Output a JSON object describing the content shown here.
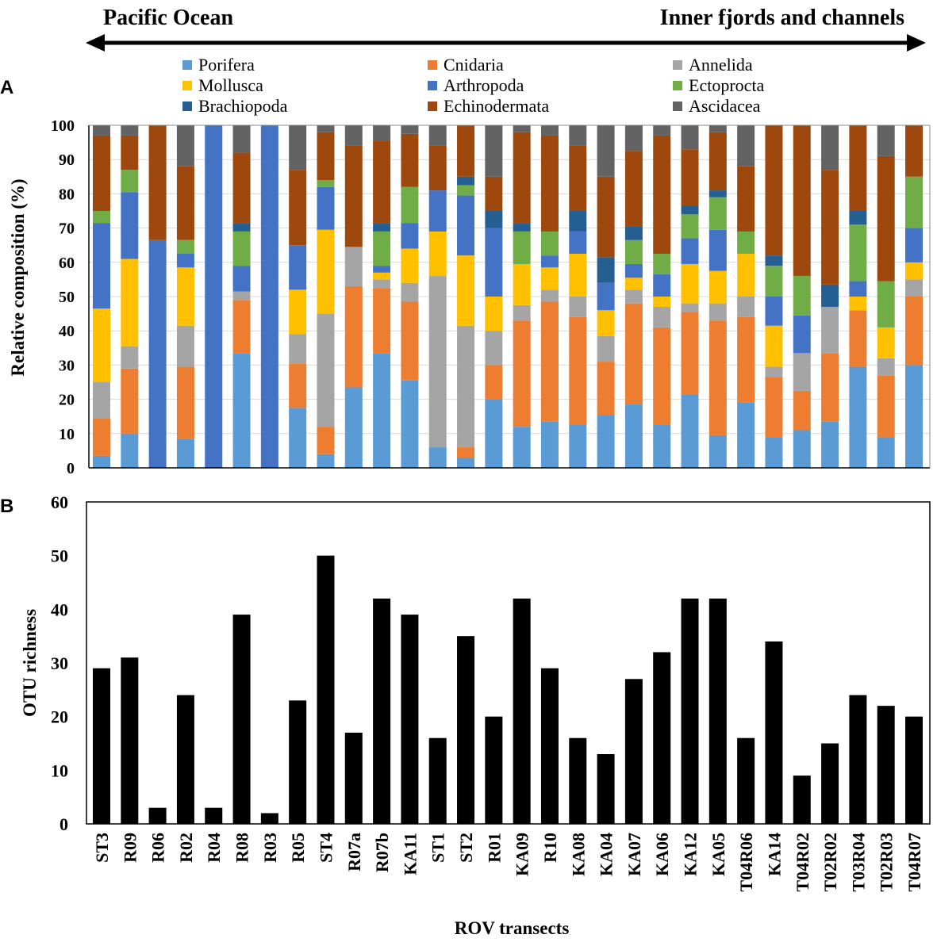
{
  "header": {
    "left_label": "Pacific Ocean",
    "right_label": "Inner fjords and channels"
  },
  "chart_data": [
    {
      "panel": "A",
      "type": "bar",
      "stacked": true,
      "ylabel": "Relative composition (%)",
      "ylim": [
        0,
        100
      ],
      "yticks": [
        "0",
        "10",
        "20",
        "30",
        "40",
        "50",
        "60",
        "70",
        "80",
        "90",
        "100"
      ],
      "grid": true,
      "legend_position": "top",
      "categories": [
        "ST3",
        "R09",
        "R06",
        "R02",
        "R04",
        "R08",
        "R03",
        "R05",
        "ST4",
        "R07a",
        "R07b",
        "KA11",
        "ST1",
        "ST2",
        "R01",
        "KA09",
        "R10",
        "KA08",
        "KA04",
        "KA07",
        "KA06",
        "KA12",
        "KA05",
        "T04R06",
        "KA14",
        "T04R02",
        "T02R02",
        "T03R04",
        "T02R03",
        "T04R07"
      ],
      "series": [
        {
          "name": "Porifera",
          "color": "#5B9BD5",
          "values": [
            3.5,
            10,
            0,
            8.5,
            0,
            33.5,
            0,
            17.5,
            4,
            23.5,
            33.5,
            25.5,
            6,
            3,
            20,
            12,
            13.5,
            12.5,
            15.5,
            18.5,
            12.5,
            21.5,
            9.5,
            19,
            9,
            11,
            13.5,
            29.5,
            9,
            30
          ]
        },
        {
          "name": "Cnidaria",
          "color": "#ED7D31",
          "values": [
            11,
            19,
            0,
            21,
            0,
            15.5,
            0,
            13,
            8,
            29.5,
            19,
            23,
            0,
            3,
            10,
            31,
            35,
            31.5,
            15.5,
            29.5,
            28.5,
            24,
            33.5,
            25,
            17.5,
            11.5,
            20,
            16.5,
            18,
            20
          ]
        },
        {
          "name": "Annelida",
          "color": "#A5A5A5",
          "values": [
            10.5,
            6.5,
            0,
            12,
            0,
            2.5,
            0,
            8.5,
            33,
            11.5,
            2.5,
            5.5,
            50,
            35.5,
            10,
            4.5,
            3.5,
            6,
            7.5,
            4,
            6,
            2.5,
            5,
            6,
            3,
            11,
            13.5,
            0,
            5,
            5
          ]
        },
        {
          "name": "Mollusca",
          "color": "#FFC000",
          "values": [
            21.5,
            25.5,
            0,
            17,
            0,
            0,
            0,
            13,
            24.5,
            0,
            2,
            10,
            13,
            20.5,
            10,
            12,
            6.5,
            12.5,
            7.5,
            3.5,
            3,
            11.5,
            9.5,
            12.5,
            12,
            0,
            0,
            4,
            9,
            5
          ]
        },
        {
          "name": "Arthropoda",
          "color": "#4472C4",
          "values": [
            25,
            19.5,
            66.5,
            4,
            100,
            7.5,
            100,
            13,
            12.5,
            0,
            2,
            7.5,
            12,
            17.5,
            20,
            0,
            3.5,
            6.5,
            8,
            4,
            6.5,
            7.5,
            12,
            0,
            8.5,
            11,
            0,
            4.5,
            0,
            10
          ]
        },
        {
          "name": "Ectoprocta",
          "color": "#70AD47",
          "values": [
            3.5,
            6.5,
            0,
            4,
            0,
            10,
            0,
            0,
            2,
            0,
            10,
            10.5,
            0,
            3,
            0,
            9.5,
            7,
            0,
            0,
            7,
            6,
            7,
            9.5,
            6.5,
            9,
            11.5,
            0,
            16.5,
            13.5,
            15
          ]
        },
        {
          "name": "Brachiopoda",
          "color": "#255E91",
          "values": [
            0,
            0,
            0,
            0,
            0,
            2.5,
            0,
            0,
            0,
            0,
            2.5,
            0,
            0,
            2.5,
            5,
            2.5,
            0,
            6,
            7.5,
            4,
            0,
            2.5,
            2,
            0,
            3,
            0,
            6.5,
            4,
            0,
            0
          ]
        },
        {
          "name": "Echinodermata",
          "color": "#9E480E",
          "values": [
            22,
            10,
            33.5,
            21.5,
            0,
            20.5,
            0,
            22,
            14,
            29.5,
            24,
            15.5,
            13,
            15,
            10,
            26.5,
            28,
            19,
            23.5,
            22,
            34.5,
            16.5,
            17,
            19,
            38,
            44,
            33.5,
            25,
            36.5,
            15
          ]
        },
        {
          "name": "Ascidacea",
          "color": "#636363",
          "values": [
            3,
            3,
            0,
            12,
            0,
            8,
            0,
            13,
            2,
            6,
            4.5,
            2.5,
            6,
            0,
            15,
            2,
            3,
            6,
            15,
            7.5,
            3,
            7,
            2,
            12,
            0,
            0,
            13,
            0,
            9,
            0
          ]
        }
      ]
    },
    {
      "panel": "B",
      "type": "bar",
      "xlabel": "ROV transects",
      "ylabel": "OTU richness",
      "ylim": [
        0,
        60
      ],
      "yticks": [
        "0",
        "10",
        "20",
        "30",
        "40",
        "50",
        "60"
      ],
      "grid": false,
      "color": "#000000",
      "categories": [
        "ST3",
        "R09",
        "R06",
        "R02",
        "R04",
        "R08",
        "R03",
        "R05",
        "ST4",
        "R07a",
        "R07b",
        "KA11",
        "ST1",
        "ST2",
        "R01",
        "KA09",
        "R10",
        "KA08",
        "KA04",
        "KA07",
        "KA06",
        "KA12",
        "KA05",
        "T04R06",
        "KA14",
        "T04R02",
        "T02R02",
        "T03R04",
        "T02R03",
        "T04R07"
      ],
      "values": [
        29,
        31,
        3,
        24,
        3,
        39,
        2,
        23,
        50,
        17,
        42,
        39,
        16,
        35,
        20,
        42,
        29,
        16,
        13,
        27,
        32,
        42,
        42,
        16,
        34,
        9,
        15,
        24,
        22,
        20
      ]
    }
  ]
}
